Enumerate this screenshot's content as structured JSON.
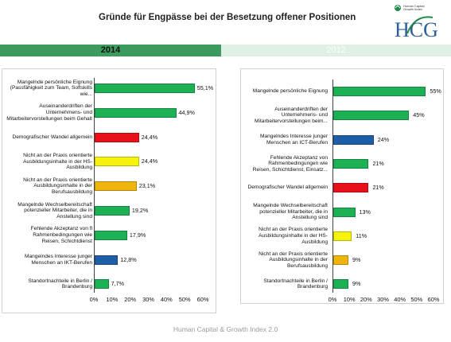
{
  "page": {
    "title": "Gründe für Engpässe bei der Besetzung offener Positionen",
    "footer": "Human Capital & Growth Index 2.0",
    "logo": {
      "text": "HCG",
      "tagline_line1": "Human Capital",
      "tagline_line2": "Growth Index"
    }
  },
  "banners": {
    "left": "2014",
    "right": "2012"
  },
  "colors": {
    "green": "#1cb154",
    "red": "#e8101a",
    "yellow": "#f5f20c",
    "orange": "#f0b40e",
    "blue": "#1e5ea6",
    "banner_dark": "#3b9a5e",
    "banner_light": "#dff0e4"
  },
  "chart_data": [
    {
      "type": "bar",
      "orientation": "horizontal",
      "title": "2014",
      "xlim": [
        0,
        60
      ],
      "xticks": [
        "0%",
        "10%",
        "20%",
        "30%",
        "40%",
        "50%",
        "60%"
      ],
      "categories": [
        [
          "Mangelnde persönliche Eignung",
          "(Passfähigkeit zum Team, Softskills",
          "wie..."
        ],
        [
          "Auseinanderdriften der",
          "Unternehmens- und",
          "Mitarbeitervorstellungen beim Gehalt"
        ],
        [
          "Demografischer Wandel allgemein"
        ],
        [
          "Nicht an der Praxis orientierte",
          "Ausbildungsinhalte in der HS-",
          "Ausbildung"
        ],
        [
          "Nicht an der Praxis orientierte",
          "Ausbildungsinhalte in der",
          "Berufsausbildung"
        ],
        [
          "Mangelnde Wechselbereitschaft",
          "potenzieller Mitarbeiter, die in",
          "Anstellung sind"
        ],
        [
          "Fehlende Akzeptanz von      fl",
          "Rahmenbedingungen wie",
          "Reisen, Schichtdienst"
        ],
        [
          "Mangelndes Interesse junger",
          "Menschen an IKT-Berufen"
        ],
        [
          "Standortnachteile in Berlin /",
          "Brandenburg"
        ]
      ],
      "values": [
        55.1,
        44.9,
        24.4,
        24.4,
        23.1,
        19.2,
        17.9,
        12.8,
        7.7
      ],
      "labels": [
        "55,1%",
        "44,9%",
        "24,4%",
        "24,4%",
        "23,1%",
        "19,2%",
        "17,9%",
        "12,8%",
        "7,7%"
      ],
      "bar_colors": [
        "green",
        "green",
        "red",
        "yellow",
        "orange",
        "green",
        "green",
        "blue",
        "green"
      ]
    },
    {
      "type": "bar",
      "orientation": "horizontal",
      "title": "2012",
      "xlim": [
        0,
        60
      ],
      "xticks": [
        "0%",
        "10%",
        "20%",
        "30%",
        "40%",
        "50%",
        "60%"
      ],
      "categories": [
        [
          "Mangelnde persönliche Eignung"
        ],
        [
          "Auseinanderdriften der",
          "Unternehmens- und",
          "Mitarbeitervorstellungen beim..."
        ],
        [
          "Mangelndes Interesse junger",
          "Menschen an ICT-Berufen"
        ],
        [
          "Fehlende Akzeptanz von",
          "Rahmenbedingungen wie",
          "Reisen, Schichtdienst, Einsatz..."
        ],
        [
          "Demografischer Wandel allgemein"
        ],
        [
          "Mangelnde Wechselbereitschaft",
          "potenzieller Mitarbeiter, die in",
          "Anstellung sind"
        ],
        [
          "Nicht an der Praxis orientierte",
          "Ausbildungsinhalte in der HS-",
          "Ausbildung"
        ],
        [
          "Nicht an der Praxis orientierte",
          "Ausbildungsinhalte in der",
          "Berufsausbildung"
        ],
        [
          "Standortnachteile in Berlin /",
          "Brandenburg"
        ]
      ],
      "values": [
        55,
        45,
        24,
        21,
        21,
        13,
        11,
        9,
        9
      ],
      "labels": [
        "55%",
        "45%",
        "24%",
        "21%",
        "21%",
        "13%",
        "11%",
        "9%",
        "9%"
      ],
      "bar_colors": [
        "green",
        "green",
        "blue",
        "green",
        "red",
        "green",
        "yellow",
        "orange",
        "green"
      ]
    }
  ]
}
